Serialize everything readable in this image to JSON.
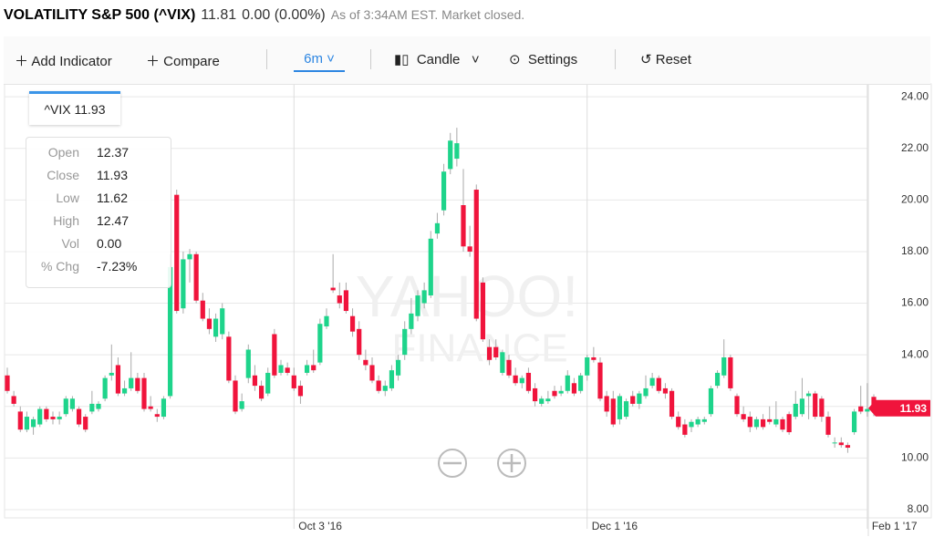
{
  "header": {
    "title": "VOLATILITY S&P 500 (^VIX)",
    "price": "11.81",
    "change": "0.00 (0.00%)",
    "status": "As of 3:34AM EST. Market closed."
  },
  "toolbar": {
    "add_indicator": "Add Indicator",
    "compare": "Compare",
    "range": "6m",
    "chart_type": "Candle",
    "settings": "Settings",
    "reset": "Reset"
  },
  "tooltip": "^VIX 11.93",
  "info_panel": {
    "labels": [
      "Open",
      "Close",
      "Low",
      "High",
      "Vol",
      "% Chg"
    ],
    "values": [
      "12.37",
      "11.93",
      "11.62",
      "12.47",
      "0.00",
      "-7.23%"
    ]
  },
  "watermark": [
    "YAHOO!",
    "FINANCE"
  ],
  "chart_data": {
    "type": "candlestick",
    "up_color": "#1ed48b",
    "down_color": "#f0143c",
    "grid": true,
    "categories": [
      null,
      null,
      null,
      null,
      null,
      null,
      null,
      null,
      null,
      null,
      null,
      null,
      null,
      null,
      null,
      null,
      null,
      null,
      null,
      null,
      null,
      null,
      null,
      null,
      null,
      null,
      null,
      null,
      null,
      null,
      null,
      null,
      null,
      null,
      null,
      null,
      null,
      null,
      null,
      null,
      null,
      null,
      null,
      null,
      "Oct 3 '16",
      null,
      null,
      null,
      null,
      null,
      null,
      null,
      null,
      null,
      null,
      null,
      null,
      null,
      null,
      null,
      null,
      null,
      null,
      null,
      null,
      null,
      null,
      null,
      null,
      null,
      null,
      null,
      null,
      null,
      null,
      null,
      null,
      null,
      null,
      null,
      null,
      null,
      null,
      null,
      null,
      null,
      null,
      null,
      null,
      "Dec 1 '16",
      null,
      null,
      null,
      null,
      null,
      null,
      null,
      null,
      null,
      null,
      null,
      null,
      null,
      null,
      null,
      null,
      null,
      null,
      null,
      null,
      null,
      null,
      null,
      null,
      null,
      null,
      null,
      null,
      null,
      null,
      null,
      null,
      null,
      null,
      null,
      null,
      null,
      null,
      null,
      null,
      null,
      null,
      "Feb 1 '17",
      null
    ],
    "open": [
      13.2,
      12.4,
      11.8,
      11.1,
      11.2,
      11.3,
      11.9,
      11.6,
      11.5,
      11.7,
      11.9,
      11.9,
      11.6,
      11.8,
      11.9,
      12.3,
      13.2,
      13.6,
      12.5,
      12.7,
      13.1,
      13.1,
      12.0,
      11.7,
      11.6,
      12.4,
      20.2,
      15.8,
      17.7,
      17.9,
      16.1,
      15.4,
      14.7,
      14.8,
      14.7,
      13.0,
      11.9,
      13.1,
      13.2,
      12.8,
      12.5,
      14.8,
      13.3,
      13.5,
      13.2,
      12.8,
      13.3,
      13.6,
      13.7,
      15.1,
      16.6,
      16.3,
      16.5,
      15.5,
      15.0,
      13.8,
      13.6,
      13.0,
      12.6,
      12.7,
      13.2,
      14.0,
      15.0,
      15.5,
      16.0,
      16.3,
      18.7,
      19.6,
      21.2,
      21.6,
      19.8,
      18.2,
      20.4,
      16.8,
      14.3,
      14.3,
      13.3,
      13.8,
      13.2,
      12.9,
      13.3,
      12.7,
      12.1,
      12.2,
      12.6,
      12.5,
      12.6,
      12.9,
      12.6,
      13.2,
      13.9,
      13.7,
      12.4,
      12.3,
      11.5,
      11.6,
      12.4,
      12.1,
      12.4,
      12.8,
      13.1,
      12.7,
      12.6,
      11.6,
      11.3,
      11.2,
      11.3,
      11.4,
      11.7,
      12.8,
      13.2,
      13.9,
      12.4,
      11.7,
      11.6,
      11.2,
      11.5,
      11.5,
      11.3,
      11.5,
      11.7,
      11.6,
      11.7,
      12.4,
      12.5,
      12.3,
      11.6,
      10.6,
      10.6,
      10.5,
      11.0,
      12.0,
      11.8,
      12.37
    ],
    "high": [
      13.5,
      12.6,
      12.0,
      11.8,
      11.6,
      12.0,
      12.0,
      11.8,
      11.8,
      12.4,
      12.4,
      12.0,
      11.7,
      12.6,
      12.2,
      13.2,
      14.4,
      13.9,
      13.0,
      14.1,
      13.3,
      13.3,
      12.4,
      11.9,
      12.4,
      17.9,
      20.4,
      18.0,
      18.1,
      18.0,
      16.4,
      15.8,
      15.6,
      16.0,
      14.9,
      13.2,
      12.5,
      14.4,
      13.6,
      13.0,
      13.5,
      15.0,
      13.8,
      13.7,
      13.5,
      13.0,
      13.8,
      14.2,
      15.4,
      15.8,
      17.9,
      16.8,
      16.8,
      15.8,
      15.3,
      14.2,
      13.9,
      13.2,
      13.0,
      13.6,
      14.0,
      15.3,
      16.2,
      16.5,
      16.8,
      18.8,
      19.5,
      21.4,
      22.6,
      22.8,
      21.2,
      19.0,
      20.6,
      17.0,
      14.6,
      14.6,
      14.2,
      14.0,
      13.5,
      13.2,
      13.5,
      12.9,
      12.4,
      12.6,
      12.8,
      12.8,
      13.4,
      13.1,
      13.3,
      14.0,
      14.3,
      13.9,
      12.6,
      12.6,
      12.5,
      12.3,
      12.6,
      12.6,
      13.2,
      13.3,
      13.2,
      12.9,
      12.7,
      11.8,
      11.5,
      11.5,
      11.6,
      11.6,
      12.8,
      13.4,
      14.6,
      14.0,
      12.5,
      12.0,
      11.8,
      11.6,
      11.7,
      12.0,
      12.2,
      11.6,
      11.8,
      12.6,
      13.1,
      12.6,
      12.6,
      12.4,
      11.8,
      10.8,
      10.8,
      10.6,
      11.9,
      12.8,
      12.9,
      12.47
    ],
    "low": [
      12.5,
      12.0,
      11.0,
      11.0,
      10.9,
      11.2,
      11.4,
      11.3,
      11.3,
      11.6,
      11.8,
      11.2,
      11.0,
      11.7,
      11.8,
      12.2,
      13.0,
      12.4,
      12.4,
      12.6,
      12.5,
      11.8,
      11.8,
      11.4,
      11.5,
      12.3,
      15.6,
      15.6,
      16.8,
      16.0,
      15.3,
      14.8,
      14.5,
      14.6,
      12.9,
      11.7,
      11.8,
      12.9,
      12.6,
      12.2,
      12.4,
      13.1,
      13.2,
      13.2,
      12.6,
      12.1,
      13.2,
      13.3,
      13.6,
      15.0,
      16.4,
      15.8,
      15.6,
      14.7,
      13.8,
      13.4,
      12.9,
      12.5,
      12.4,
      12.6,
      13.0,
      13.8,
      14.8,
      15.3,
      15.8,
      16.2,
      18.5,
      19.4,
      21.0,
      21.3,
      18.0,
      17.8,
      15.3,
      14.5,
      13.6,
      13.8,
      13.2,
      13.1,
      12.8,
      12.7,
      12.5,
      12.0,
      12.0,
      12.1,
      12.3,
      12.4,
      12.5,
      12.4,
      12.5,
      13.0,
      13.7,
      12.2,
      11.6,
      11.2,
      11.3,
      11.5,
      12.0,
      11.9,
      12.3,
      12.7,
      12.5,
      12.3,
      11.5,
      11.1,
      10.8,
      11.0,
      11.2,
      11.3,
      11.6,
      12.7,
      13.1,
      12.6,
      11.6,
      11.4,
      11.0,
      11.1,
      11.1,
      11.3,
      11.2,
      11.0,
      10.9,
      11.5,
      11.6,
      11.5,
      11.5,
      11.4,
      10.8,
      10.4,
      10.4,
      10.2,
      10.9,
      11.7,
      11.6,
      11.62
    ],
    "close": [
      12.6,
      12.1,
      11.1,
      11.6,
      11.5,
      11.9,
      11.5,
      11.5,
      11.6,
      12.3,
      12.3,
      11.3,
      11.1,
      12.1,
      12.1,
      13.1,
      13.3,
      12.5,
      12.7,
      13.1,
      12.6,
      11.9,
      11.9,
      11.6,
      12.3,
      17.4,
      15.7,
      17.7,
      17.9,
      16.1,
      15.4,
      15.0,
      15.4,
      15.8,
      13.0,
      11.8,
      12.2,
      14.2,
      12.8,
      12.3,
      13.3,
      13.2,
      13.6,
      13.3,
      12.7,
      12.4,
      13.6,
      13.4,
      15.2,
      15.5,
      16.5,
      16.0,
      15.7,
      14.9,
      14.0,
      13.6,
      13.0,
      12.6,
      12.8,
      13.4,
      13.8,
      15.0,
      15.6,
      16.3,
      16.5,
      18.5,
      19.1,
      21.1,
      22.3,
      22.2,
      18.2,
      18.0,
      15.4,
      14.6,
      13.8,
      13.9,
      14.1,
      13.2,
      12.9,
      13.1,
      12.6,
      12.2,
      12.3,
      12.3,
      12.4,
      12.6,
      13.2,
      12.5,
      13.2,
      13.9,
      13.8,
      12.3,
      11.8,
      11.3,
      12.4,
      12.2,
      12.1,
      12.5,
      12.7,
      13.1,
      12.6,
      12.5,
      11.6,
      11.2,
      10.9,
      11.4,
      11.5,
      11.5,
      12.7,
      13.3,
      13.9,
      12.7,
      11.7,
      11.5,
      11.2,
      11.5,
      11.2,
      11.4,
      11.5,
      11.1,
      11.0,
      12.1,
      12.3,
      12.5,
      11.6,
      11.6,
      10.9,
      10.6,
      10.5,
      10.4,
      11.8,
      11.8,
      11.9,
      11.93
    ],
    "last_label": "11.93",
    "ylim": [
      7.68,
      24.5
    ],
    "yticks": [
      {
        "value": 8,
        "label": "8.00"
      },
      {
        "value": 10,
        "label": "10.00"
      },
      {
        "value": 12,
        "label": "12.00"
      },
      {
        "value": 14,
        "label": "14.00"
      },
      {
        "value": 16,
        "label": "16.00"
      },
      {
        "value": 18,
        "label": "18.00"
      },
      {
        "value": 20,
        "label": "20.00"
      },
      {
        "value": 22,
        "label": "22.00"
      },
      {
        "value": 24,
        "label": "24.00"
      }
    ]
  }
}
